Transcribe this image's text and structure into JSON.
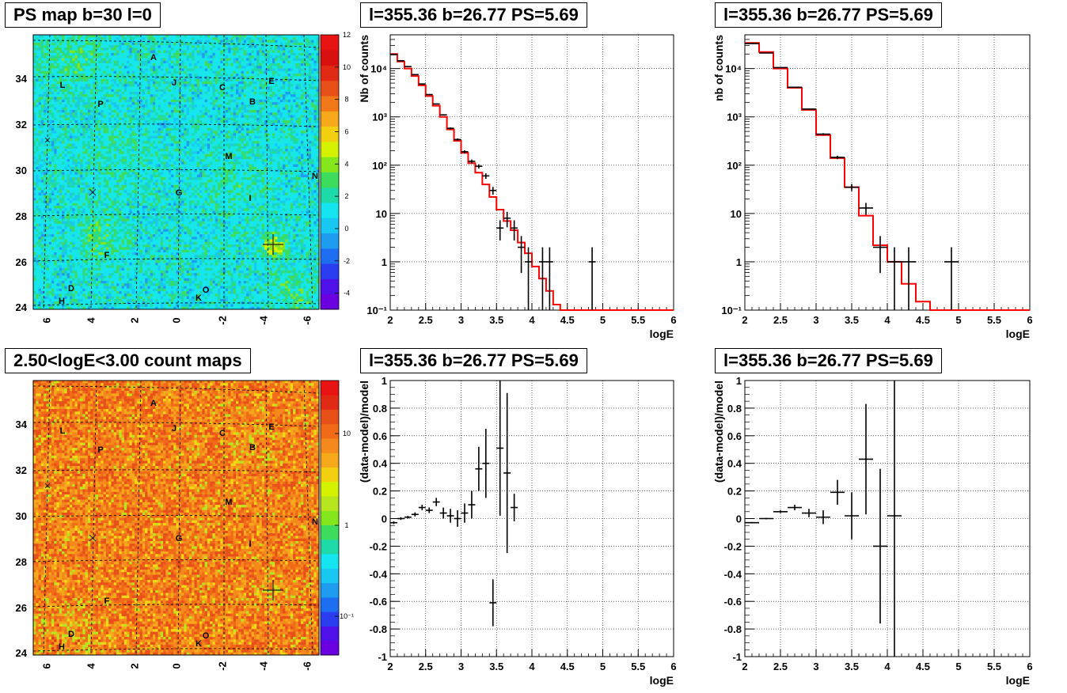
{
  "chart_data": [
    {
      "id": "psmap",
      "type": "heatmap",
      "title": "PS map b=30 l=0",
      "x_ticks": [
        "6",
        "4",
        "2",
        "0",
        "-2",
        "-4",
        "-6"
      ],
      "y_ticks": [
        "24",
        "26",
        "28",
        "30",
        "32",
        "34"
      ],
      "colorbar_ticks": [
        "12",
        "10",
        "8",
        "6",
        "4",
        "2",
        "0",
        "-2",
        "-4"
      ],
      "zrange": [
        -5,
        12
      ],
      "colorbar_scale": "linear",
      "sources": [
        "A",
        "J",
        "C",
        "E",
        "L",
        "P",
        "B",
        "M",
        "N",
        "G",
        "I",
        "F",
        "D",
        "H",
        "O",
        "K"
      ]
    },
    {
      "id": "spectrum1",
      "type": "line",
      "title": "l=355.36 b=26.77 PS=5.69",
      "xlabel": "logE",
      "ylabel": "Nb of counts",
      "xlim": [
        2,
        6
      ],
      "ylim": [
        0.1,
        50000
      ],
      "yscale": "log",
      "grid": true,
      "x_ticks": [
        "2",
        "2.5",
        "3",
        "3.5",
        "4",
        "4.5",
        "5",
        "5.5",
        "6"
      ],
      "y_ticks": [
        "10⁴",
        "10³",
        "10²",
        "10",
        "1",
        "10⁻¹"
      ],
      "model": {
        "edges": [
          2,
          2.1,
          2.2,
          2.3,
          2.4,
          2.5,
          2.6,
          2.7,
          2.8,
          2.9,
          3.0,
          3.1,
          3.2,
          3.3,
          3.4,
          3.5,
          3.6,
          3.7,
          3.8,
          3.9,
          4.0,
          4.1,
          4.2,
          4.3,
          4.4,
          6.0
        ],
        "values": [
          20000,
          14000,
          10000,
          7000,
          4500,
          2700,
          1700,
          1000,
          550,
          320,
          180,
          110,
          70,
          40,
          22,
          12,
          7,
          4.5,
          2.5,
          1.5,
          0.8,
          0.45,
          0.25,
          0.13,
          0.1
        ]
      },
      "data": {
        "x": [
          2.05,
          2.15,
          2.25,
          2.35,
          2.45,
          2.55,
          2.65,
          2.75,
          2.85,
          2.95,
          3.05,
          3.15,
          3.25,
          3.35,
          3.45,
          3.55,
          3.65,
          3.75,
          3.85,
          3.95,
          4.15,
          4.25,
          4.85
        ],
        "y": [
          19500,
          14500,
          11000,
          7500,
          4800,
          2900,
          1850,
          1100,
          580,
          340,
          190,
          120,
          95,
          60,
          30,
          5,
          8,
          5,
          2,
          1,
          1,
          1,
          1
        ],
        "xerr": 0.05
      }
    },
    {
      "id": "spectrum2",
      "type": "line",
      "title": "l=355.36 b=26.77 PS=5.69",
      "xlabel": "logE",
      "ylabel": "nb of counts",
      "xlim": [
        2,
        6
      ],
      "ylim": [
        0.1,
        50000
      ],
      "yscale": "log",
      "grid": true,
      "x_ticks": [
        "2",
        "2.5",
        "3",
        "3.5",
        "4",
        "4.5",
        "5",
        "5.5",
        "6"
      ],
      "y_ticks": [
        "10⁴",
        "10³",
        "10²",
        "10",
        "1",
        "10⁻¹"
      ],
      "model": {
        "edges": [
          2,
          2.2,
          2.4,
          2.6,
          2.8,
          3.0,
          3.2,
          3.4,
          3.6,
          3.8,
          4.0,
          4.2,
          4.4,
          4.6,
          6.0
        ],
        "values": [
          34000,
          22000,
          10000,
          4000,
          1400,
          420,
          140,
          35,
          9,
          2.2,
          1,
          0.35,
          0.15,
          0.1
        ]
      },
      "data": {
        "x": [
          2.1,
          2.3,
          2.5,
          2.7,
          2.9,
          3.1,
          3.3,
          3.5,
          3.7,
          3.9,
          4.1,
          4.3,
          4.9
        ],
        "y": [
          33000,
          21000,
          10500,
          4100,
          1450,
          440,
          145,
          35,
          13,
          2,
          1,
          1,
          1
        ],
        "xerr": 0.1
      }
    },
    {
      "id": "counts",
      "type": "heatmap",
      "title": "2.50<logE<3.00 count maps",
      "x_ticks": [
        "6",
        "4",
        "2",
        "0",
        "-2",
        "-4",
        "-6"
      ],
      "y_ticks": [
        "24",
        "26",
        "28",
        "30",
        "32",
        "34"
      ],
      "colorbar_ticks": [
        "10",
        "1",
        "10⁻¹"
      ],
      "colorbar_scale": "log",
      "sources": [
        "A",
        "J",
        "C",
        "E",
        "L",
        "P",
        "B",
        "M",
        "N",
        "G",
        "I",
        "F",
        "D",
        "H",
        "O",
        "K"
      ]
    },
    {
      "id": "resid1",
      "type": "scatter",
      "title": "l=355.36 b=26.77 PS=5.69",
      "xlabel": "logE",
      "ylabel": "(data-model)/model",
      "xlim": [
        2,
        6
      ],
      "ylim": [
        -1,
        1
      ],
      "grid": true,
      "x_ticks": [
        "2",
        "2.5",
        "3",
        "3.5",
        "4",
        "4.5",
        "5",
        "5.5",
        "6"
      ],
      "y_ticks": [
        "1",
        "0.8",
        "0.6",
        "0.4",
        "0.2",
        "0",
        "-0.2",
        "-0.4",
        "-0.6",
        "-0.8",
        "-1"
      ],
      "x": [
        2.05,
        2.15,
        2.25,
        2.35,
        2.45,
        2.55,
        2.65,
        2.75,
        2.85,
        2.95,
        3.05,
        3.15,
        3.25,
        3.35,
        3.45,
        3.55,
        3.65,
        3.75
      ],
      "y": [
        -0.03,
        0.0,
        0.01,
        0.03,
        0.08,
        0.06,
        0.12,
        0.04,
        0.02,
        0.0,
        0.04,
        0.1,
        0.36,
        0.4,
        -0.61,
        0.51,
        0.33,
        0.08
      ],
      "yerr": [
        0.01,
        0.01,
        0.01,
        0.015,
        0.02,
        0.02,
        0.03,
        0.04,
        0.05,
        0.06,
        0.07,
        0.1,
        0.16,
        0.25,
        0.17,
        0.49,
        0.58,
        0.1
      ],
      "xerr": 0.05
    },
    {
      "id": "resid2",
      "type": "scatter",
      "title": "l=355.36 b=26.77 PS=5.69",
      "xlabel": "logE",
      "ylabel": "(data-model)/model",
      "xlim": [
        2,
        6
      ],
      "ylim": [
        -1,
        1
      ],
      "grid": true,
      "x_ticks": [
        "2",
        "2.5",
        "3",
        "3.5",
        "4",
        "4.5",
        "5",
        "5.5",
        "6"
      ],
      "y_ticks": [
        "1",
        "0.8",
        "0.6",
        "0.4",
        "0.2",
        "0",
        "-0.2",
        "-0.4",
        "-0.6",
        "-0.8",
        "-1"
      ],
      "x": [
        2.1,
        2.3,
        2.5,
        2.7,
        2.9,
        3.1,
        3.3,
        3.5,
        3.7,
        3.9,
        4.1
      ],
      "y": [
        -0.03,
        0.0,
        0.05,
        0.08,
        0.04,
        0.01,
        0.19,
        0.02,
        0.43,
        -0.2,
        0.02
      ],
      "yerr": [
        0.005,
        0.005,
        0.01,
        0.02,
        0.03,
        0.05,
        0.09,
        0.17,
        0.4,
        0.56,
        1.1
      ],
      "xerr": 0.1
    }
  ]
}
